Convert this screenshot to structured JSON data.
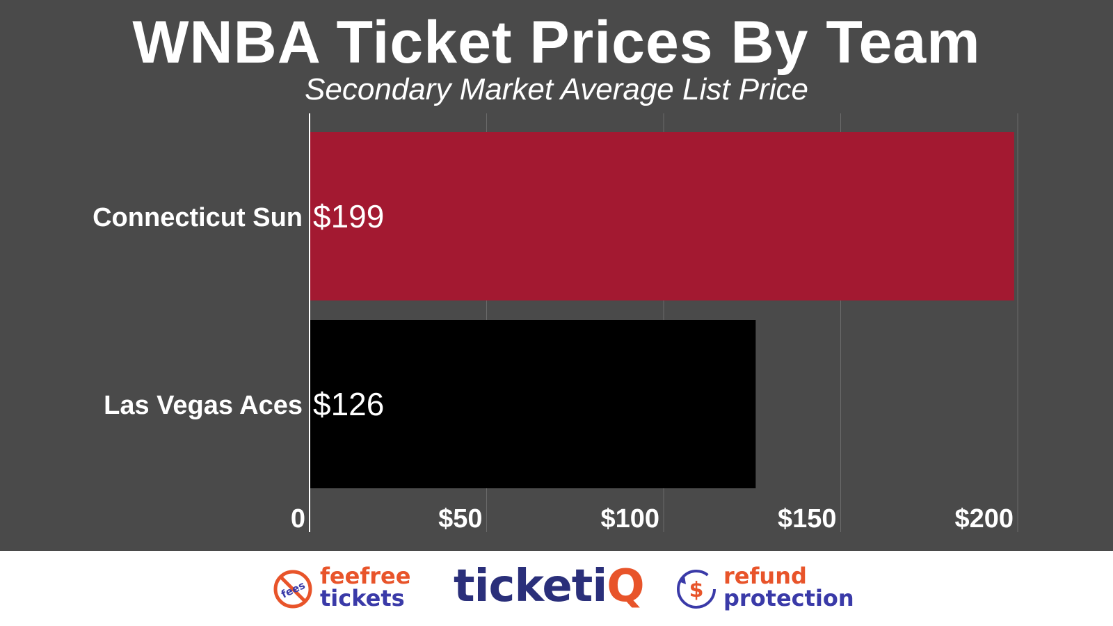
{
  "header": {
    "title": "WNBA Ticket Prices By Team",
    "subtitle": "Secondary Market Average List Price"
  },
  "chart_data": {
    "type": "bar",
    "orientation": "horizontal",
    "title": "WNBA Ticket Prices By Team",
    "subtitle": "Secondary Market Average List Price",
    "categories": [
      "Connecticut Sun",
      "Las Vegas Aces"
    ],
    "values": [
      199,
      126
    ],
    "value_labels": [
      "$199",
      "$126"
    ],
    "bar_colors": [
      "#a31931",
      "#000000"
    ],
    "xlim": [
      0,
      200
    ],
    "x_ticks": [
      0,
      50,
      100,
      150,
      200
    ],
    "x_tick_labels": [
      "0",
      "$50",
      "$100",
      "$150",
      "$200"
    ],
    "grid": true,
    "legend": "none"
  },
  "footer": {
    "feefree": {
      "icon": "no-fees-icon",
      "icon_text": "fees",
      "line1": "feefree",
      "line2": "tickets"
    },
    "ticketiq": {
      "text_main": "ticketi",
      "text_accent": "Q"
    },
    "refund": {
      "icon": "refund-dollar-icon",
      "icon_text": "$",
      "line1": "refund",
      "line2": "protection"
    }
  }
}
